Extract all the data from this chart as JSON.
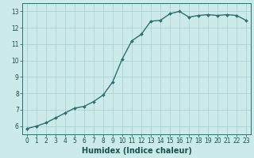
{
  "x": [
    0,
    1,
    2,
    3,
    4,
    5,
    6,
    7,
    8,
    9,
    10,
    11,
    12,
    13,
    14,
    15,
    16,
    17,
    18,
    19,
    20,
    21,
    22,
    23
  ],
  "y": [
    5.85,
    6.0,
    6.2,
    6.5,
    6.8,
    7.1,
    7.2,
    7.5,
    7.9,
    8.7,
    10.1,
    11.2,
    11.6,
    12.4,
    12.45,
    12.85,
    13.0,
    12.65,
    12.75,
    12.8,
    12.75,
    12.8,
    12.75,
    12.45
  ],
  "line_color": "#2d6e6e",
  "marker": "D",
  "marker_size": 2.0,
  "bg_color": "#cceaea",
  "grid_color": "#aad4d4",
  "axis_color": "#2d6e6e",
  "xlabel": "Humidex (Indice chaleur)",
  "xlabel_fontsize": 7,
  "xlabel_color": "#1a5050",
  "xlim": [
    -0.5,
    23.5
  ],
  "ylim": [
    5.5,
    13.5
  ],
  "yticks": [
    6,
    7,
    8,
    9,
    10,
    11,
    12,
    13
  ],
  "xticks": [
    0,
    1,
    2,
    3,
    4,
    5,
    6,
    7,
    8,
    9,
    10,
    11,
    12,
    13,
    14,
    15,
    16,
    17,
    18,
    19,
    20,
    21,
    22,
    23
  ],
  "tick_fontsize": 5.5,
  "tick_color": "#1a5050",
  "line_width": 1.0
}
